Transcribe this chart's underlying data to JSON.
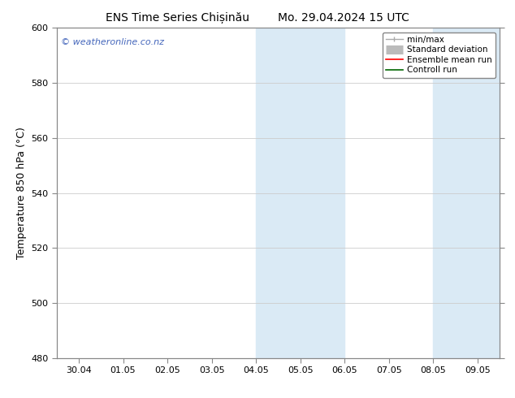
{
  "title_left": "ENS Time Series Chișinău",
  "title_right": "Mo. 29.04.2024 15 UTC",
  "ylabel": "Temperature 850 hPa (°C)",
  "ylim": [
    480,
    600
  ],
  "yticks": [
    480,
    500,
    520,
    540,
    560,
    580,
    600
  ],
  "xtick_labels": [
    "30.04",
    "01.05",
    "02.05",
    "03.05",
    "04.05",
    "05.05",
    "06.05",
    "07.05",
    "08.05",
    "09.05"
  ],
  "xlim": [
    -0.5,
    9.5
  ],
  "bg_color": "#ffffff",
  "shaded_bands": [
    {
      "x_start": 4.0,
      "x_end": 5.0,
      "color": "#daeaf5"
    },
    {
      "x_start": 5.0,
      "x_end": 6.0,
      "color": "#daeaf5"
    },
    {
      "x_start": 8.0,
      "x_end": 9.0,
      "color": "#daeaf5"
    },
    {
      "x_start": 9.0,
      "x_end": 9.5,
      "color": "#daeaf5"
    }
  ],
  "watermark_text": "© weatheronline.co.nz",
  "watermark_color": "#4466bb",
  "spine_color": "#888888",
  "grid_color": "#cccccc",
  "tick_fontsize": 8,
  "label_fontsize": 9,
  "title_fontsize": 10
}
